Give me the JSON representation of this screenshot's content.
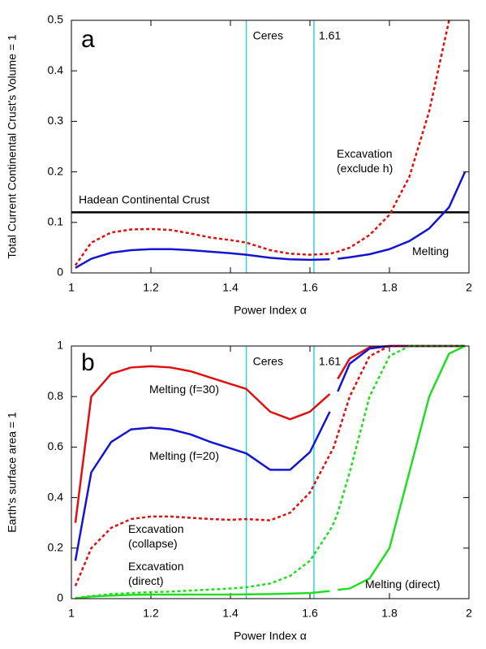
{
  "chart_data": [
    {
      "type": "line",
      "panel": "a",
      "xlabel": "Power Index α",
      "ylabel": "Total Current Continental Crust's Volume = 1",
      "xlim": [
        1,
        2
      ],
      "ylim": [
        0,
        0.5
      ],
      "xticks": [
        1,
        1.2,
        1.4,
        1.6,
        1.8,
        2
      ],
      "yticks": [
        0,
        0.1,
        0.2,
        0.3,
        0.4,
        0.5
      ],
      "x": [
        1.01,
        1.05,
        1.1,
        1.15,
        1.2,
        1.25,
        1.3,
        1.35,
        1.4,
        1.44,
        1.5,
        1.55,
        1.6,
        1.65,
        1.66,
        1.67,
        1.7,
        1.75,
        1.8,
        1.85,
        1.9,
        1.95,
        1.99
      ],
      "series": [
        {
          "name": [
            "Melting"
          ],
          "color": "#1414d2",
          "dashed": false,
          "values": [
            0.01,
            0.028,
            0.04,
            0.045,
            0.047,
            0.047,
            0.045,
            0.042,
            0.039,
            0.036,
            0.03,
            0.027,
            0.026,
            0.027,
            null,
            0.028,
            0.031,
            0.037,
            0.047,
            0.063,
            0.088,
            0.13,
            0.2
          ]
        },
        {
          "name": [
            "Excavation",
            "(exclude h)"
          ],
          "color": "#e01010",
          "dashed": true,
          "values": [
            0.015,
            0.06,
            0.08,
            0.086,
            0.087,
            0.085,
            0.078,
            0.07,
            0.065,
            0.06,
            0.045,
            0.038,
            0.036,
            0.038,
            0.04,
            0.042,
            0.05,
            0.075,
            0.115,
            0.19,
            0.32,
            0.5,
            null
          ]
        }
      ],
      "hlines": [
        {
          "value": 0.12,
          "label": "Hadean Continental Crust",
          "color": "#000000"
        }
      ],
      "vlines": [
        {
          "value": 1.44,
          "label": "Ceres",
          "color": "#33d6d6"
        },
        {
          "value": 1.61,
          "label": "1.61",
          "color": "#33d6d6"
        }
      ]
    },
    {
      "type": "line",
      "panel": "b",
      "xlabel": "Power Index α",
      "ylabel": "Earth's surface area = 1",
      "xlim": [
        1,
        2
      ],
      "ylim": [
        0,
        1
      ],
      "xticks": [
        1,
        1.2,
        1.4,
        1.6,
        1.8,
        2
      ],
      "yticks": [
        0,
        0.2,
        0.4,
        0.6,
        0.8,
        1
      ],
      "x": [
        1.01,
        1.05,
        1.1,
        1.15,
        1.2,
        1.25,
        1.3,
        1.35,
        1.4,
        1.44,
        1.5,
        1.55,
        1.6,
        1.65,
        1.66,
        1.67,
        1.7,
        1.75,
        1.8,
        1.85,
        1.9,
        1.95,
        1.99
      ],
      "series": [
        {
          "name": [
            "Melting (f=30)"
          ],
          "color": "#e01010",
          "dashed": false,
          "values": [
            0.3,
            0.8,
            0.89,
            0.915,
            0.92,
            0.915,
            0.9,
            0.875,
            0.85,
            0.83,
            0.74,
            0.71,
            0.74,
            0.81,
            null,
            0.87,
            0.95,
            0.995,
            1,
            1,
            1,
            1,
            1
          ]
        },
        {
          "name": [
            "Melting (f=20)"
          ],
          "color": "#1414d2",
          "dashed": false,
          "values": [
            0.15,
            0.5,
            0.62,
            0.67,
            0.677,
            0.67,
            0.65,
            0.62,
            0.595,
            0.575,
            0.51,
            0.51,
            0.58,
            0.74,
            null,
            0.82,
            0.93,
            0.99,
            1,
            1,
            1,
            1,
            1
          ]
        },
        {
          "name": [
            "Excavation",
            "(collapse)"
          ],
          "color": "#e01010",
          "dashed": true,
          "values": [
            0.05,
            0.2,
            0.28,
            0.315,
            0.325,
            0.325,
            0.32,
            0.315,
            0.312,
            0.315,
            0.31,
            0.34,
            0.42,
            0.57,
            0.6,
            0.65,
            0.8,
            0.96,
            1,
            1,
            1,
            1,
            1
          ]
        },
        {
          "name": [
            "Excavation",
            "(direct)"
          ],
          "color": "#22dd22",
          "dashed": true,
          "values": [
            0.002,
            0.01,
            0.018,
            0.022,
            0.026,
            0.028,
            0.032,
            0.036,
            0.04,
            0.045,
            0.06,
            0.09,
            0.15,
            0.27,
            0.3,
            0.34,
            0.5,
            0.8,
            0.96,
            1,
            1,
            1,
            1
          ]
        },
        {
          "name": [
            "Melting (direct)"
          ],
          "color": "#22dd22",
          "dashed": false,
          "values": [
            0.001,
            0.008,
            0.012,
            0.015,
            0.016,
            0.016,
            0.016,
            0.016,
            0.016,
            0.017,
            0.018,
            0.02,
            0.022,
            0.03,
            null,
            0.035,
            0.04,
            0.08,
            0.2,
            0.5,
            0.8,
            0.97,
            1
          ]
        }
      ],
      "hlines": [],
      "vlines": [
        {
          "value": 1.44,
          "label": "Ceres",
          "color": "#33d6d6"
        },
        {
          "value": 1.61,
          "label": "1.61",
          "color": "#33d6d6"
        }
      ]
    }
  ]
}
